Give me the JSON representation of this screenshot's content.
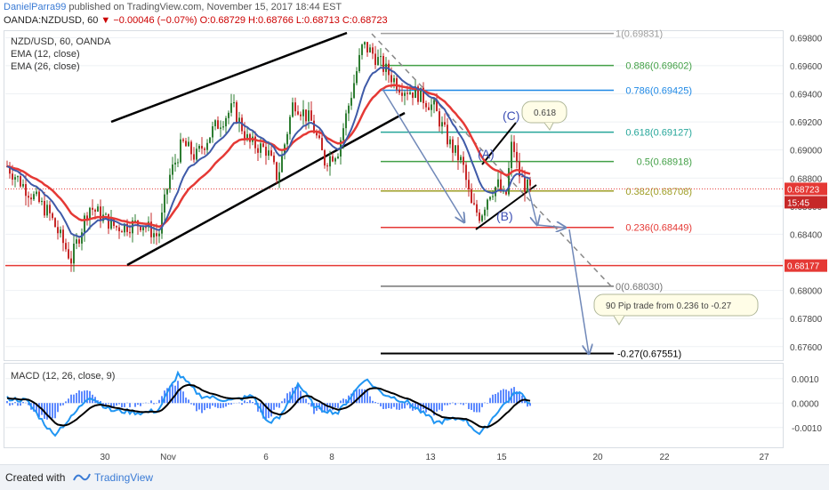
{
  "header": {
    "author": "DanielParra99",
    "published": "published on TradingView.com, November 15, 2017 18:44 EST",
    "symbol": "OANDA:NZDUSD, 60",
    "change": "−0.00046 (−0.07%)",
    "ohlc": "O:0.68729 H:0.68766 L:0.68713 C:0.68723"
  },
  "legend": {
    "title": "NZD/USD, 60, OANDA",
    "ema12": "EMA (12, close)",
    "ema26": "EMA (26, close)",
    "macd": "MACD (12, 26, close, 9)"
  },
  "footer": {
    "created": "Created with",
    "brand": "TradingView"
  },
  "colors": {
    "candle_up": "#2e7d32",
    "candle_down": "#c62828",
    "ema12": "#3f5aa8",
    "ema26": "#e53935",
    "macd_line": "#2196f3",
    "signal_line": "#000000",
    "hist": "#2962ff",
    "price_tag": "#e53935",
    "time_tag": "#c62828"
  },
  "chart_data": [
    {
      "type": "candlestick",
      "title": "NZD/USD, 60, OANDA",
      "y_ticks": [
        "0.69800",
        "0.69600",
        "0.69400",
        "0.69200",
        "0.69000",
        "0.68800",
        "0.68600",
        "0.68400",
        "0.68200",
        "0.68000",
        "0.67800",
        "0.67600"
      ],
      "y_range": [
        0.6751,
        0.6984
      ],
      "x_ticks": [
        "30",
        "Nov",
        "6",
        "8",
        "13",
        "15",
        "20",
        "22",
        "27"
      ],
      "price_tags": {
        "last": "0.68723",
        "countdown": "15:45",
        "support": "0.68177"
      },
      "series": [
        {
          "name": "EMA (12, close)"
        },
        {
          "name": "EMA (26, close)"
        }
      ],
      "fibonacci": [
        {
          "level": "1",
          "price": 0.6983,
          "label": "1(0.69831)",
          "color": "#9e9e9e"
        },
        {
          "level": "0.886",
          "price": 0.69602,
          "label": "0.886(0.69602)",
          "color": "#43a047"
        },
        {
          "level": "0.786",
          "price": 0.69425,
          "label": "0.786(0.69425)",
          "color": "#1e88e5"
        },
        {
          "level": "0.618",
          "price": 0.69127,
          "label": "0.618(0.69127)",
          "color": "#26a69a"
        },
        {
          "level": "0.5",
          "price": 0.68918,
          "label": "0.5(0.68918)",
          "color": "#43a047"
        },
        {
          "level": "0.382",
          "price": 0.68708,
          "label": "0.382(0.68708)",
          "color": "#9e9d24"
        },
        {
          "level": "0.236",
          "price": 0.68449,
          "label": "0.236(0.68449)",
          "color": "#e53935"
        },
        {
          "level": "0",
          "price": 0.6803,
          "label": "0(0.68030)",
          "color": "#757575"
        },
        {
          "level": "-0.27",
          "price": 0.67551,
          "label": "-0.27(0.67551)",
          "color": "#000000"
        }
      ],
      "support_line": 0.68177,
      "pattern_labels": [
        "(A)",
        "(B)",
        "(C)"
      ],
      "annotations": [
        "0.618",
        "90 Pip trade from 0.236 to -0.27"
      ]
    },
    {
      "type": "line",
      "title": "MACD (12, 26, close, 9)",
      "y_ticks": [
        "0.0010",
        "0.0000",
        "-0.0010"
      ],
      "y_range": [
        -0.0017,
        0.0015
      ],
      "series": [
        {
          "name": "MACD"
        },
        {
          "name": "Signal"
        },
        {
          "name": "Histogram"
        }
      ]
    }
  ]
}
